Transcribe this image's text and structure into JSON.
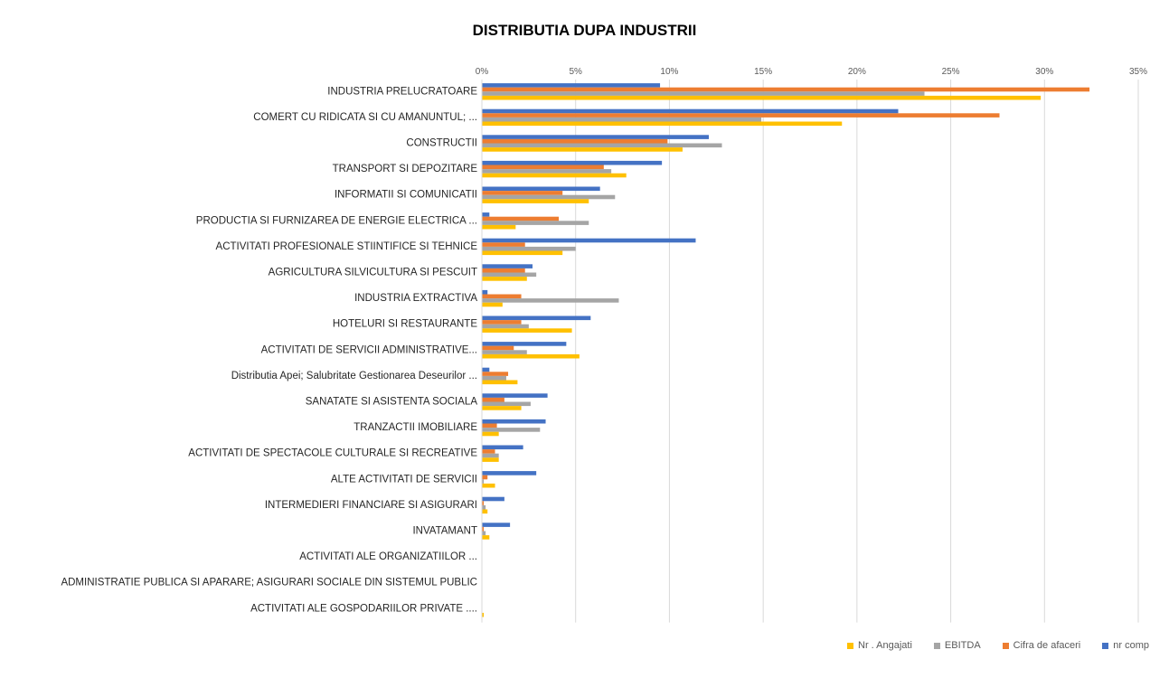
{
  "chart_data": {
    "type": "bar",
    "orientation": "horizontal",
    "title": "DISTRIBUTIA DUPA INDUSTRII",
    "xlim": [
      0,
      35
    ],
    "x_ticks": [
      "0%",
      "5%",
      "10%",
      "15%",
      "20%",
      "25%",
      "30%",
      "35%"
    ],
    "grid": true,
    "legend_position": "bottom-right",
    "categories": [
      "INDUSTRIA PRELUCRATOARE",
      "COMERT CU RIDICATA SI CU AMANUNTUL; ...",
      "CONSTRUCTII",
      "TRANSPORT SI DEPOZITARE",
      "INFORMATII SI COMUNICATII",
      "PRODUCTIA SI FURNIZAREA DE ENERGIE ELECTRICA ...",
      "ACTIVITATI PROFESIONALE STIINTIFICE SI TEHNICE",
      "AGRICULTURA SILVICULTURA SI PESCUIT",
      "INDUSTRIA EXTRACTIVA",
      "HOTELURI SI RESTAURANTE",
      "ACTIVITATI DE SERVICII ADMINISTRATIVE...",
      "Distributia Apei; Salubritate Gestionarea Deseurilor ...",
      "SANATATE SI ASISTENTA SOCIALA",
      "TRANZACTII IMOBILIARE",
      "ACTIVITATI DE SPECTACOLE CULTURALE SI RECREATIVE",
      "ALTE ACTIVITATI DE SERVICII",
      "INTERMEDIERI FINANCIARE SI ASIGURARI",
      "INVATAMANT",
      "ACTIVITATI ALE ORGANIZATIILOR ...",
      "ADMINISTRATIE PUBLICA SI APARARE; ASIGURARI SOCIALE DIN SISTEMUL PUBLIC",
      "ACTIVITATI ALE GOSPODARIILOR PRIVATE ...."
    ],
    "series": [
      {
        "name": "nr comp",
        "color": "#4472C4",
        "values": [
          9.5,
          22.2,
          12.1,
          9.6,
          6.3,
          0.4,
          11.4,
          2.7,
          0.3,
          5.8,
          4.5,
          0.4,
          3.5,
          3.4,
          2.2,
          2.9,
          1.2,
          1.5,
          0.0,
          0.0,
          0.0
        ]
      },
      {
        "name": "Cifra de afaceri",
        "color": "#ED7D31",
        "values": [
          32.4,
          27.6,
          9.9,
          6.5,
          4.3,
          4.1,
          2.3,
          2.3,
          2.1,
          2.1,
          1.7,
          1.4,
          1.2,
          0.8,
          0.7,
          0.3,
          0.1,
          0.1,
          0.0,
          0.0,
          0.0
        ]
      },
      {
        "name": "EBITDA",
        "color": "#A5A5A5",
        "values": [
          23.6,
          14.9,
          12.8,
          6.9,
          7.1,
          5.7,
          5.0,
          2.9,
          7.3,
          2.5,
          2.4,
          1.3,
          2.6,
          3.1,
          0.9,
          0.1,
          0.2,
          0.2,
          0.0,
          0.0,
          0.0
        ]
      },
      {
        "name": "Nr . Angajati",
        "color": "#FFC000",
        "values": [
          29.8,
          19.2,
          10.7,
          7.7,
          5.7,
          1.8,
          4.3,
          2.4,
          1.1,
          4.8,
          5.2,
          1.9,
          2.1,
          0.9,
          0.9,
          0.7,
          0.3,
          0.4,
          0.0,
          0.0,
          0.1
        ]
      }
    ]
  },
  "legend": [
    {
      "label": "Nr . Angajati",
      "color": "#FFC000"
    },
    {
      "label": "EBITDA",
      "color": "#A5A5A5"
    },
    {
      "label": "Cifra de afaceri",
      "color": "#ED7D31"
    },
    {
      "label": "nr comp",
      "color": "#4472C4"
    }
  ]
}
